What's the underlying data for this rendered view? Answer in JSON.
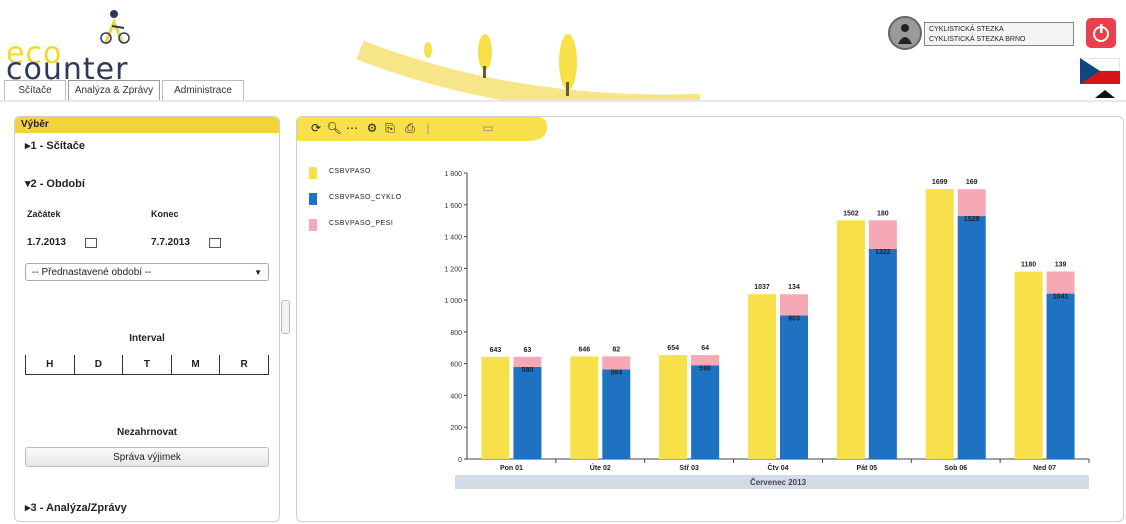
{
  "header": {
    "logo_top": "eco",
    "logo_bottom": "counter",
    "tabs": [
      {
        "label": "Sčítače"
      },
      {
        "label": "Analýza & Zprávy"
      },
      {
        "label": "Administrace"
      }
    ],
    "site": {
      "line1": "CYKLISTICKÁ STEZKA",
      "line2": "CYKLISTICKÁ STEZKA BRNO"
    },
    "colors": {
      "brand_yellow": "#f2d43a",
      "brand_navy": "#2b3a5c",
      "power_red": "#e9414b"
    }
  },
  "left": {
    "header": "Výběr",
    "section1": "▸1 - Sčítače",
    "section2": "▾2 - Období",
    "start_label": "Začátek",
    "end_label": "Konec",
    "start_value": "1.7.2013",
    "end_value": "7.7.2013",
    "preset_placeholder": "-- Přednastavené období --",
    "interval_label": "Interval",
    "intervals": [
      "H",
      "D",
      "T",
      "M",
      "R"
    ],
    "aggregate_label": "Nezahrnovat",
    "exceptions_button": "Správa výjimek",
    "section3": "▸3 - Analýza/Zprávy"
  },
  "toolbar": {
    "icons": [
      "refresh-icon",
      "zoom-icon",
      "dots-icon",
      "settings-icon",
      "export-icon",
      "print-icon",
      "separator-icon",
      "window-icon"
    ]
  },
  "chart_data": {
    "type": "bar",
    "categories": [
      "Pon 01",
      "Úte 02",
      "Stř 03",
      "Čtv 04",
      "Pát 05",
      "Sob 06",
      "Ned 07"
    ],
    "x_band_label": "Červenec 2013",
    "series": [
      {
        "name": "CSBVPASO",
        "color": "#f7e04a",
        "values": [
          643,
          646,
          654,
          1037,
          1502,
          1699,
          1180
        ]
      },
      {
        "name": "CSBVPASO_CYKLO",
        "color": "#1f72c2",
        "values": [
          580,
          564,
          590,
          903,
          1322,
          1529,
          1041
        ]
      },
      {
        "name": "CSBVPASO_PESI",
        "color": "#f6a9b4",
        "values": [
          63,
          82,
          64,
          134,
          180,
          169,
          139
        ]
      }
    ],
    "value_labels": {
      "total": [
        "643",
        "646",
        "654",
        "1037",
        "1502",
        "1699",
        "1180"
      ],
      "cyklo": [
        "580",
        "564",
        "590",
        "903",
        "1322",
        "1529",
        "1041"
      ],
      "pesi": [
        "63",
        "82",
        "64",
        "134",
        "180",
        "169",
        "139"
      ]
    },
    "y_ticks": [
      "0",
      "200",
      "400",
      "600",
      "800",
      "1 000",
      "1 200",
      "1 400",
      "1 600",
      "1 800"
    ],
    "ylim": [
      0,
      1800
    ],
    "grid": false,
    "legend_position": "top-left"
  }
}
